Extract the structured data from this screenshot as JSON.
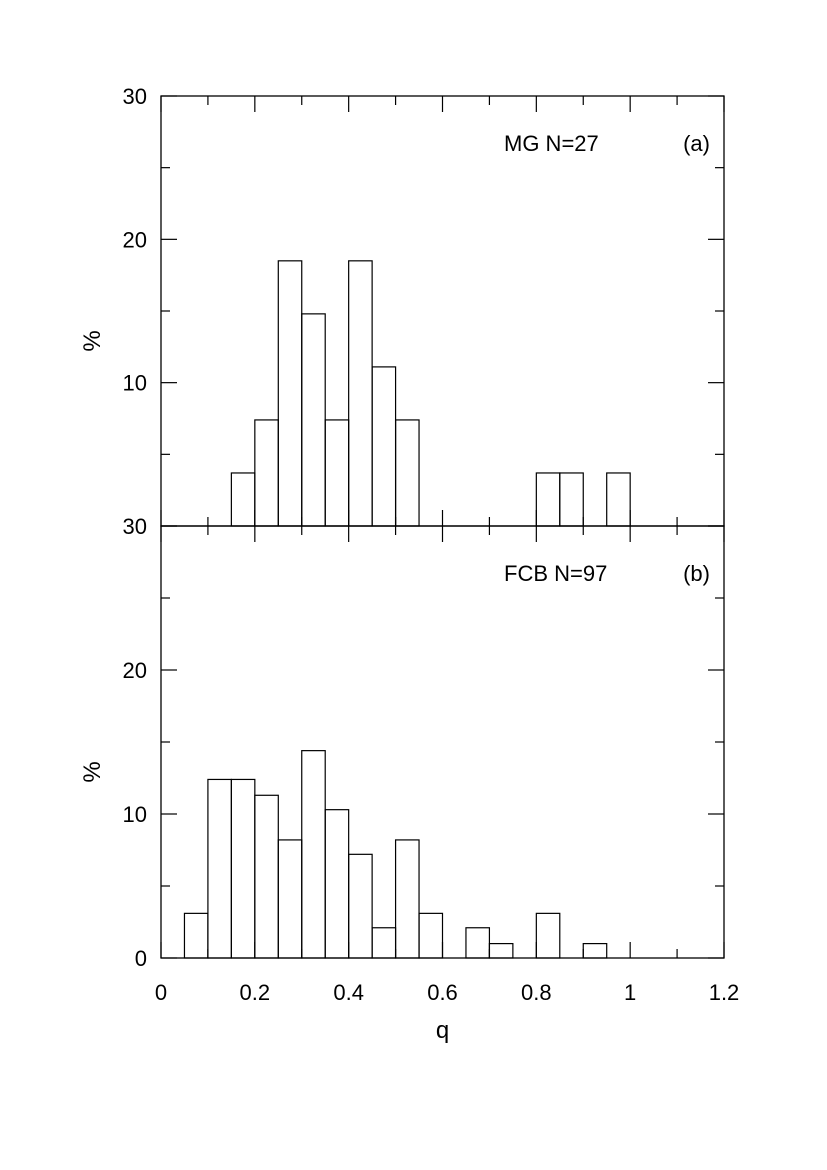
{
  "chart_data": [
    {
      "type": "bar",
      "panel": "(a)",
      "annotation": "MG  N=27",
      "xlabel": "q",
      "ylabel": "%",
      "xlim": [
        0,
        1.2
      ],
      "ylim": [
        0,
        30
      ],
      "bin_width": 0.05,
      "x": [
        0.15,
        0.2,
        0.25,
        0.3,
        0.35,
        0.4,
        0.45,
        0.5,
        0.8,
        0.85,
        0.95
      ],
      "values": [
        3.7,
        7.4,
        18.5,
        14.8,
        7.4,
        18.5,
        11.1,
        7.4,
        3.7,
        3.7,
        3.7
      ],
      "yticks": [
        "30",
        "20",
        "10"
      ]
    },
    {
      "type": "bar",
      "panel": "(b)",
      "annotation": "FCB N=97",
      "xlabel": "q",
      "ylabel": "%",
      "xlim": [
        0,
        1.2
      ],
      "ylim": [
        0,
        30
      ],
      "bin_width": 0.05,
      "x": [
        0.05,
        0.1,
        0.15,
        0.2,
        0.25,
        0.3,
        0.35,
        0.4,
        0.45,
        0.5,
        0.55,
        0.65,
        0.7,
        0.8,
        0.9
      ],
      "values": [
        3.1,
        12.4,
        12.4,
        11.3,
        8.2,
        14.4,
        10.3,
        7.2,
        2.1,
        8.2,
        3.1,
        2.1,
        1.0,
        3.1,
        1.0
      ],
      "yticks": [
        "30",
        "20",
        "10",
        "0"
      ],
      "xticks": [
        "0",
        "0.2",
        "0.4",
        "0.6",
        "0.8",
        "1",
        "1.2"
      ]
    }
  ]
}
